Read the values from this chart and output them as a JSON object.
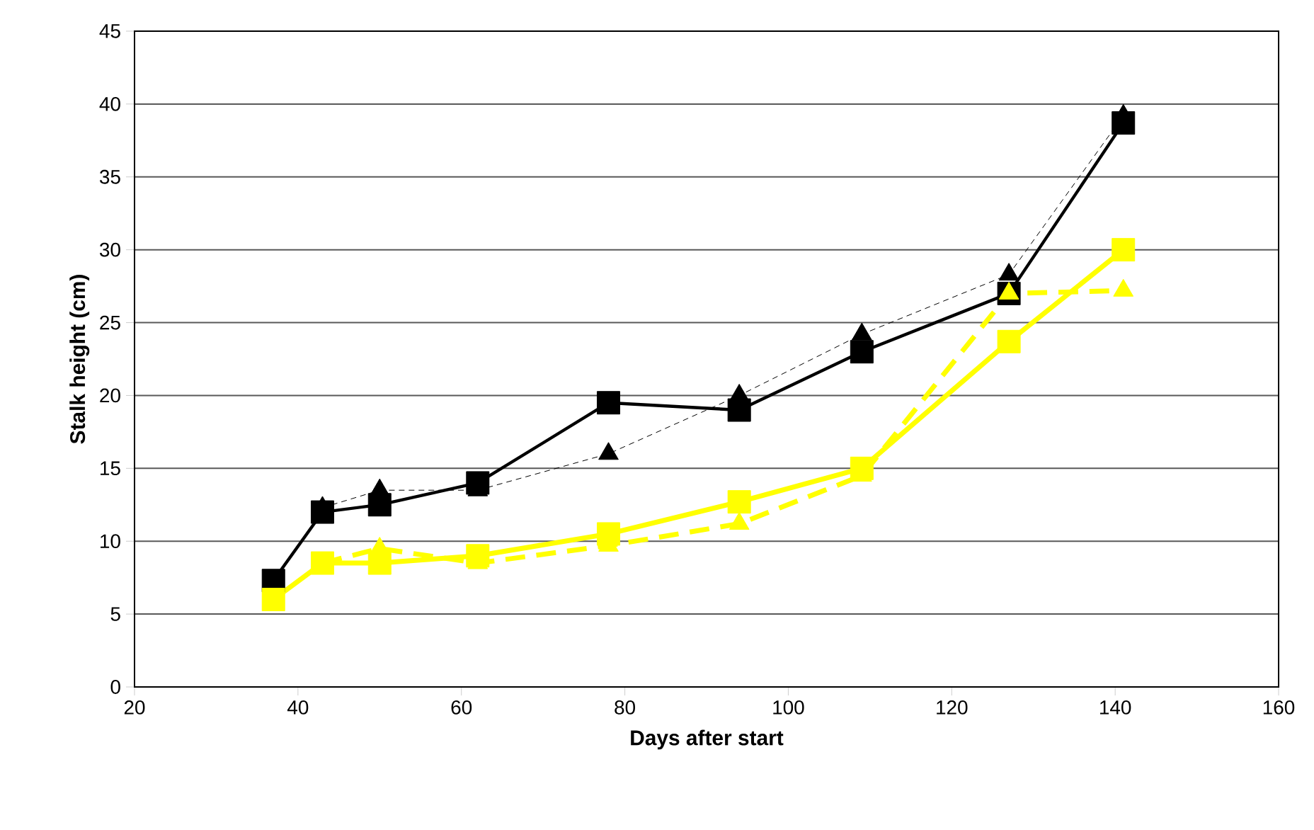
{
  "chart_data": {
    "type": "line",
    "xlabel": "Days after start",
    "ylabel": "Stalk height (cm)",
    "x": [
      37,
      43,
      50,
      62,
      78,
      94,
      109,
      127,
      141
    ],
    "series": [
      {
        "color": "#000000",
        "marker": "square",
        "line_style": "solid",
        "values": [
          7.3,
          12,
          12.5,
          14,
          19.5,
          19,
          23,
          27,
          38.7
        ]
      },
      {
        "color": "#000000",
        "marker": "triangle",
        "line_style": "dashed",
        "values": [
          null,
          12.3,
          13.5,
          13.5,
          16,
          20,
          24.2,
          28.3,
          39.2
        ]
      },
      {
        "color": "#ffff00",
        "marker": "square",
        "line_style": "solid",
        "values": [
          6,
          8.5,
          8.5,
          9,
          10.5,
          12.7,
          15,
          23.7,
          30
        ]
      },
      {
        "color": "#ffff00",
        "marker": "triangle",
        "line_style": "dashed",
        "values": [
          null,
          8.5,
          9.5,
          8.5,
          9.7,
          11.2,
          14.5,
          27,
          27.2
        ]
      }
    ],
    "xlim": [
      20,
      160
    ],
    "xticks": [
      20,
      40,
      60,
      80,
      100,
      120,
      140,
      160
    ],
    "ylim": [
      0,
      45
    ],
    "yticks": [
      0,
      5,
      10,
      15,
      20,
      25,
      30,
      35,
      40,
      45
    ],
    "grid": "y"
  }
}
